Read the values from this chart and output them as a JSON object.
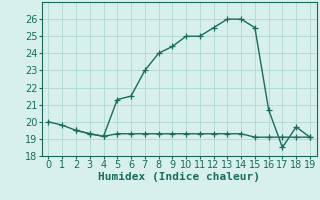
{
  "xlabel": "Humidex (Indice chaleur)",
  "humidex_x": [
    0,
    1,
    2,
    3,
    4,
    5,
    6,
    7,
    8,
    9,
    10,
    11,
    12,
    13,
    14,
    15,
    16,
    17,
    18,
    19
  ],
  "humidex_y": [
    20.0,
    19.8,
    19.5,
    19.3,
    19.15,
    21.3,
    21.5,
    23.0,
    24.0,
    24.4,
    25.0,
    25.0,
    25.5,
    26.0,
    26.0,
    25.5,
    20.7,
    18.5,
    19.7,
    19.1
  ],
  "flat_x": [
    2,
    3,
    4,
    5,
    6,
    7,
    8,
    9,
    10,
    11,
    12,
    13,
    14,
    15,
    16,
    17,
    18,
    19
  ],
  "flat_y": [
    19.5,
    19.3,
    19.15,
    19.3,
    19.3,
    19.3,
    19.3,
    19.3,
    19.3,
    19.3,
    19.3,
    19.3,
    19.3,
    19.1,
    19.1,
    19.1,
    19.1,
    19.1
  ],
  "line_color": "#1a6b5e",
  "bg_color": "#d8f0ec",
  "grid_color": "#b0d8d0",
  "ylim": [
    18,
    27
  ],
  "xlim": [
    -0.5,
    19.5
  ],
  "yticks": [
    18,
    19,
    20,
    21,
    22,
    23,
    24,
    25,
    26
  ],
  "xticks": [
    0,
    1,
    2,
    3,
    4,
    5,
    6,
    7,
    8,
    9,
    10,
    11,
    12,
    13,
    14,
    15,
    16,
    17,
    18,
    19
  ],
  "marker": "+",
  "markersize": 4,
  "linewidth": 1.0,
  "fontsize": 7
}
